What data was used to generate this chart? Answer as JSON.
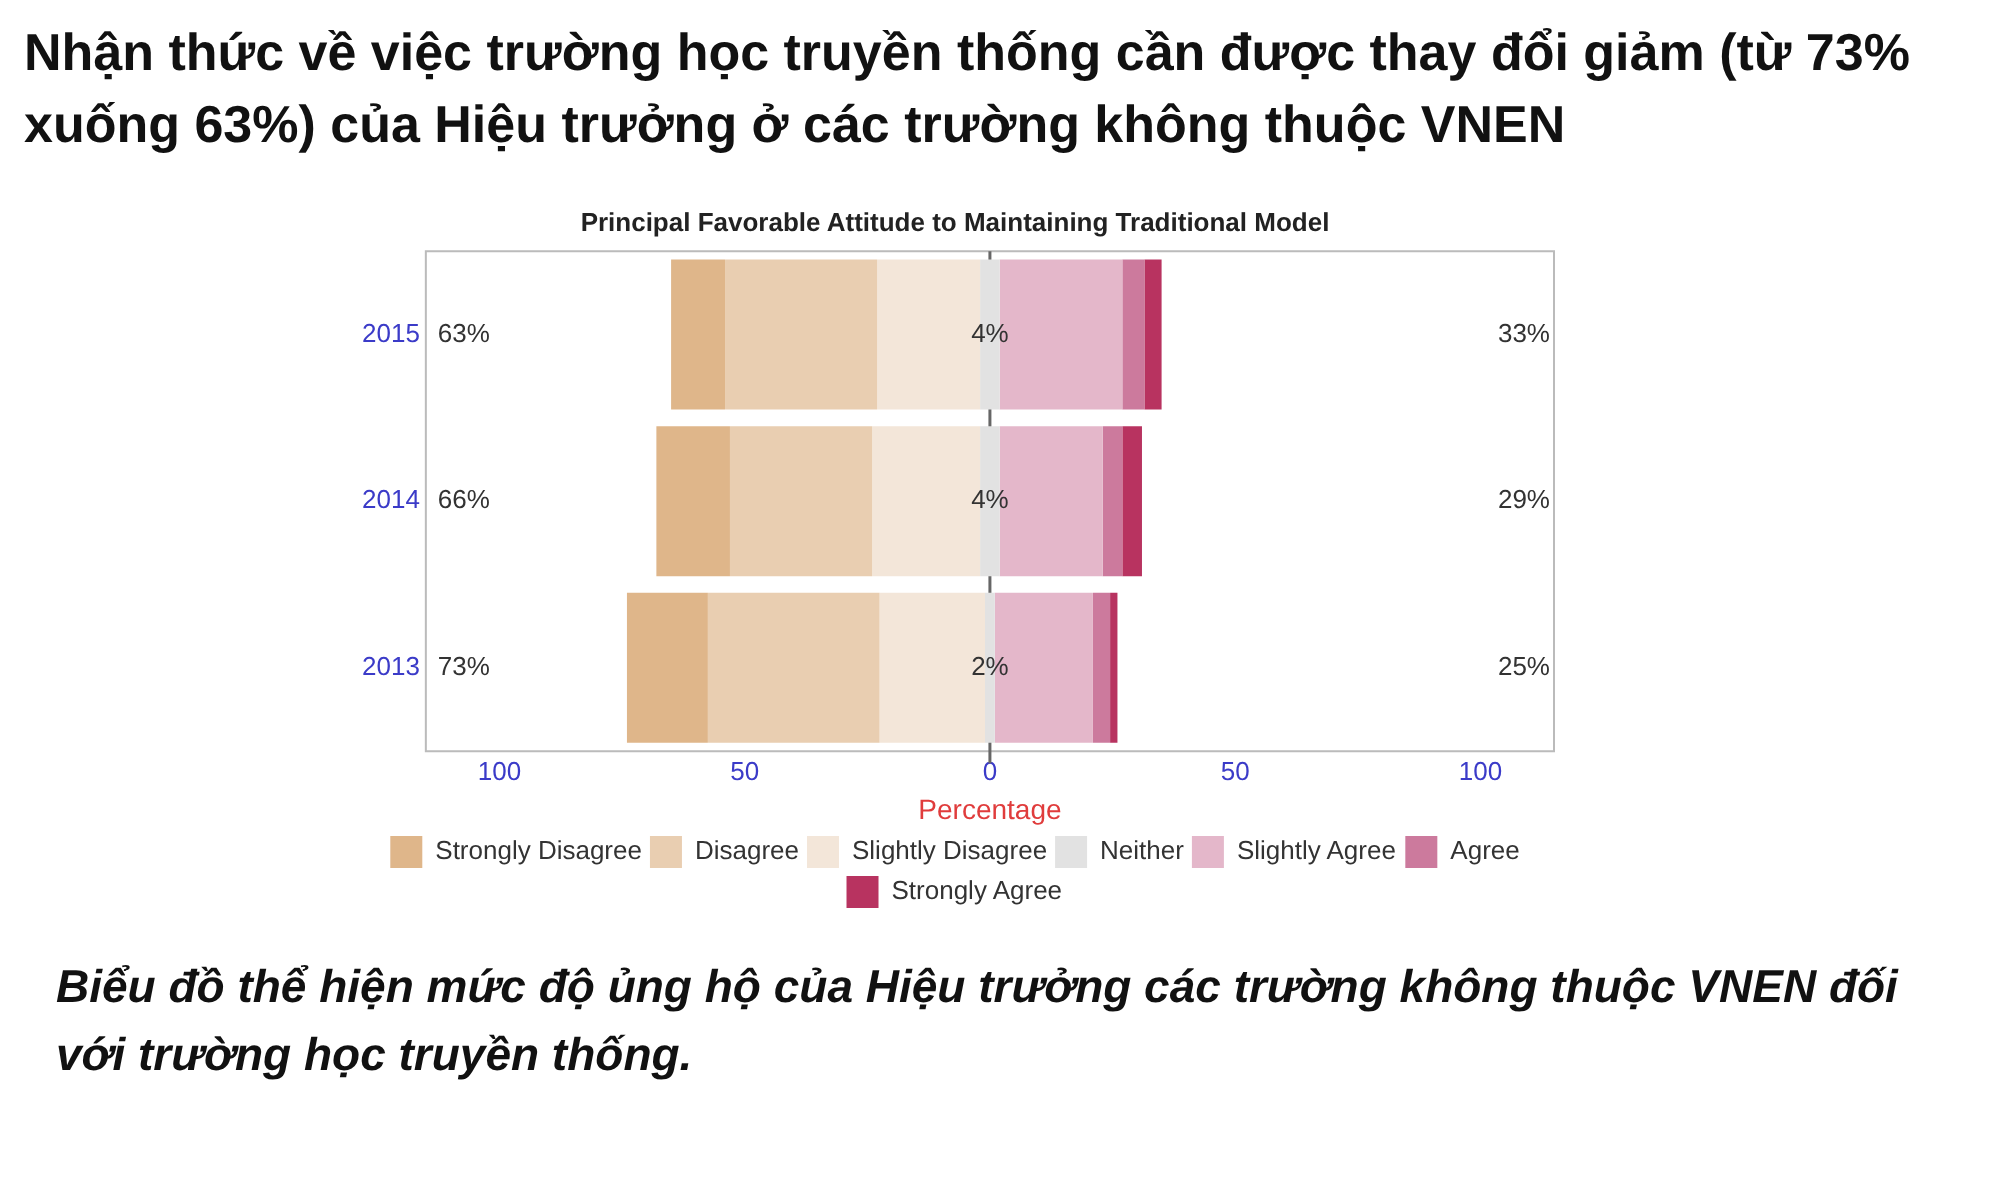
{
  "chart_data": {
    "type": "bar",
    "orientation": "horizontal",
    "title": "Nhận thức về việc trường học truyền thống cần được thay đổi  giảm (từ 73% xuống 63%) của Hiệu trưởng ở các trường không thuộc VNEN",
    "subtitle": "Principal Favorable Attitude to Maintaining Traditional Model",
    "xlabel": "Percentage",
    "categories": [
      "2015",
      "2014",
      "2013"
    ],
    "series": [
      {
        "name": "Strongly Disagree",
        "color": "#dfb68a",
        "values": [
          11,
          15,
          16.5
        ],
        "base": [
          -65,
          -68,
          -74
        ]
      },
      {
        "name": "Disagree",
        "color": "#e9ceb1",
        "values": [
          31,
          29,
          35
        ],
        "base": [
          -54,
          -53,
          -57.5
        ]
      },
      {
        "name": "Slightly Disagree",
        "color": "#f3e6d9",
        "values": [
          21,
          22,
          21.5
        ],
        "base": [
          -23,
          -24,
          -22.5
        ]
      },
      {
        "name": "Neither",
        "color": "#e2e2e2",
        "values": [
          4,
          4,
          2
        ],
        "base": [
          -2,
          -2,
          -1
        ],
        "value_labels": [
          "4%",
          "4%",
          "2%"
        ]
      },
      {
        "name": "Slightly Agree",
        "color": "#e4b7ca",
        "values": [
          25,
          21,
          20
        ],
        "base": [
          2,
          2,
          1
        ]
      },
      {
        "name": "Agree",
        "color": "#cc7a9d",
        "values": [
          4.5,
          4,
          3.5
        ],
        "base": [
          27,
          23,
          21
        ]
      },
      {
        "name": "Strongly Agree",
        "color": "#b83360",
        "values": [
          3.5,
          4,
          1.5
        ],
        "base": [
          31.5,
          27,
          24.5
        ]
      }
    ],
    "xlim": [
      -115,
      115
    ],
    "xticks": [
      {
        "value": -100,
        "label": "100"
      },
      {
        "value": -50,
        "label": "50"
      },
      0,
      50,
      100
    ],
    "ref_lines": [
      {
        "axis": "x",
        "value": 0,
        "label": null,
        "color": "#666666"
      }
    ],
    "annotations": [
      "63%",
      "66%",
      "73%",
      "33%",
      "29%",
      "25%",
      "Biểu đồ thể hiện mức độ ủng hộ của Hiệu trưởng các trường không thuộc VNEN đối với trường học truyền thống."
    ],
    "grid": false,
    "legend": "bottom",
    "stacked": true
  }
}
